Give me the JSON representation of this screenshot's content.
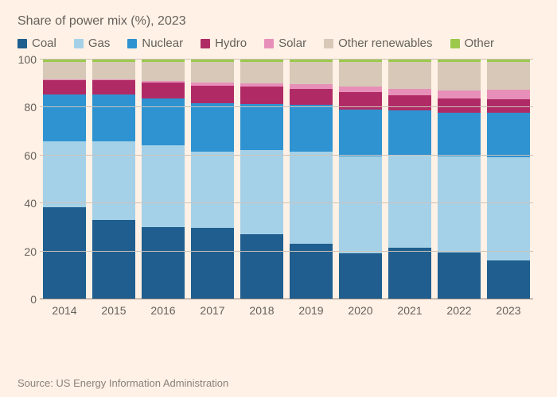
{
  "chart": {
    "type": "stacked-bar",
    "subtitle": "Share of power mix (%), 2023",
    "background_color": "#fff1e5",
    "grid_color": "#cdc2b8",
    "baseline_color": "#8a817b",
    "text_color": "#66605c",
    "subtitle_fontsize": 16,
    "label_fontsize": 14,
    "ylim": [
      0,
      100
    ],
    "ytick_step": 20,
    "yticks": [
      0,
      20,
      40,
      60,
      80,
      100
    ],
    "bar_gap_pct": 12,
    "categories": [
      "2014",
      "2015",
      "2016",
      "2017",
      "2018",
      "2019",
      "2020",
      "2021",
      "2022",
      "2023"
    ],
    "series": [
      {
        "name": "Coal",
        "color": "#1f5e8f"
      },
      {
        "name": "Gas",
        "color": "#a5d1e8"
      },
      {
        "name": "Nuclear",
        "color": "#2f93d1"
      },
      {
        "name": "Hydro",
        "color": "#b02b66"
      },
      {
        "name": "Solar",
        "color": "#e78fb8"
      },
      {
        "name": "Other renewables",
        "color": "#d7c8b8"
      },
      {
        "name": "Other",
        "color": "#9cc94c"
      }
    ],
    "data": {
      "2014": [
        38.5,
        27.5,
        19.5,
        6.0,
        0.4,
        7.1,
        1.0
      ],
      "2015": [
        33.1,
        32.7,
        19.5,
        6.0,
        0.6,
        7.1,
        1.0
      ],
      "2016": [
        30.3,
        33.8,
        19.7,
        6.5,
        0.9,
        7.8,
        1.0
      ],
      "2017": [
        29.9,
        31.8,
        20.0,
        7.4,
        1.3,
        8.6,
        1.0
      ],
      "2018": [
        27.3,
        35.1,
        19.2,
        7.0,
        1.5,
        8.9,
        1.0
      ],
      "2019": [
        23.3,
        38.4,
        19.6,
        6.6,
        1.7,
        9.4,
        1.0
      ],
      "2020": [
        19.2,
        40.5,
        19.6,
        7.2,
        2.3,
        10.2,
        1.0
      ],
      "2021": [
        21.6,
        38.4,
        18.9,
        6.2,
        2.8,
        11.1,
        1.0
      ],
      "2022": [
        19.7,
        39.9,
        18.2,
        6.0,
        3.4,
        11.8,
        1.0
      ],
      "2023": [
        16.2,
        43.1,
        18.6,
        5.7,
        3.9,
        11.5,
        1.0
      ]
    },
    "source": "Source: US Energy Information Administration"
  }
}
